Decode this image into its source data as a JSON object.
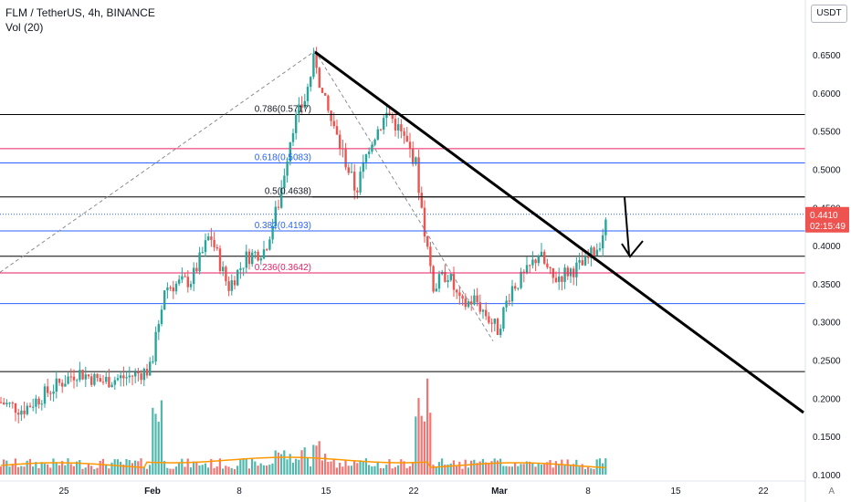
{
  "header": {
    "title": "FLM / TetherUS, 4h, BINANCE",
    "volume": "Vol (20)"
  },
  "axis_controls": {
    "currency": "USDT",
    "auto": "A"
  },
  "price_label": {
    "price": "0.4410",
    "countdown": "02:15:49"
  },
  "colors": {
    "up": "#26a69a",
    "down": "#ef5350",
    "fib_blue": "#2962ff",
    "fib_pink": "#e91e63",
    "trend": "#000000",
    "vol_ma": "#ff9800"
  },
  "chart_data": {
    "type": "candlestick",
    "title": "FLM / TetherUS, 4h, BINANCE",
    "ylim": [
      0.1,
      0.68
    ],
    "y_ticks": [
      "0.6500",
      "0.6000",
      "0.5500",
      "0.5000",
      "0.4500",
      "0.4000",
      "0.3500",
      "0.3000",
      "0.2500",
      "0.2000",
      "0.1500",
      "0.1000"
    ],
    "x_ticks": [
      "25",
      "Feb",
      "8",
      "15",
      "22",
      "Mar",
      "8",
      "15",
      "22"
    ],
    "price_path": [
      [
        0,
        0.195
      ],
      [
        25,
        0.185
      ],
      [
        60,
        0.215
      ],
      [
        85,
        0.235
      ],
      [
        110,
        0.222
      ],
      [
        140,
        0.228
      ],
      [
        165,
        0.238
      ],
      [
        180,
        0.345
      ],
      [
        210,
        0.355
      ],
      [
        230,
        0.415
      ],
      [
        250,
        0.345
      ],
      [
        270,
        0.385
      ],
      [
        290,
        0.395
      ],
      [
        305,
        0.455
      ],
      [
        320,
        0.555
      ],
      [
        335,
        0.595
      ],
      [
        345,
        0.65
      ],
      [
        352,
        0.6
      ],
      [
        365,
        0.555
      ],
      [
        380,
        0.505
      ],
      [
        390,
        0.47
      ],
      [
        405,
        0.535
      ],
      [
        425,
        0.575
      ],
      [
        440,
        0.545
      ],
      [
        455,
        0.51
      ],
      [
        465,
        0.42
      ],
      [
        475,
        0.345
      ],
      [
        490,
        0.365
      ],
      [
        505,
        0.32
      ],
      [
        520,
        0.33
      ],
      [
        535,
        0.305
      ],
      [
        545,
        0.29
      ],
      [
        560,
        0.345
      ],
      [
        575,
        0.36
      ],
      [
        590,
        0.39
      ],
      [
        605,
        0.355
      ],
      [
        620,
        0.365
      ],
      [
        640,
        0.375
      ],
      [
        655,
        0.4
      ],
      [
        668,
        0.441
      ]
    ],
    "fib_levels": [
      {
        "label": "0.786(0.5717)",
        "value": 0.5717
      },
      {
        "label": "0.618(0.5083)",
        "value": 0.5083
      },
      {
        "label": "0.5(0.4638)",
        "value": 0.4638
      },
      {
        "label": "0.382(0.4193)",
        "value": 0.4193
      },
      {
        "label": "0.236(0.3642)",
        "value": 0.3642
      }
    ],
    "horizontal_lines": [
      {
        "value": 0.5717,
        "color": "#000000"
      },
      {
        "value": 0.527,
        "color": "#e91e63"
      },
      {
        "value": 0.5083,
        "color": "#2962ff"
      },
      {
        "value": 0.4638,
        "color": "#000000"
      },
      {
        "value": 0.4193,
        "color": "#2962ff"
      },
      {
        "value": 0.386,
        "color": "#000000"
      },
      {
        "value": 0.3642,
        "color": "#e91e63"
      },
      {
        "value": 0.324,
        "color": "#2962ff"
      },
      {
        "value": 0.235,
        "color": "#000000"
      }
    ],
    "last_price": 0.441,
    "grid": false
  }
}
